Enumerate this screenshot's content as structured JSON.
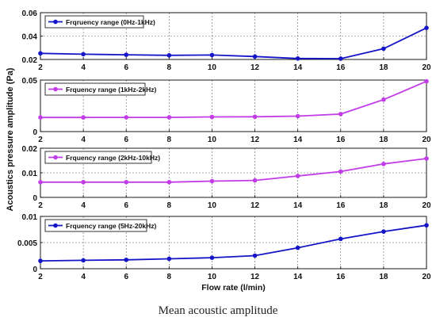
{
  "figure": {
    "caption": "Mean acoustic amplitude"
  },
  "chart_data": [
    {
      "type": "line",
      "x": [
        2,
        4,
        6,
        8,
        10,
        12,
        14,
        16,
        18,
        20
      ],
      "xlim": [
        2,
        20
      ],
      "ylim": [
        0.02,
        0.06
      ],
      "yticks": [
        "0.02",
        "0.04",
        "0.06"
      ],
      "xticks": [
        "2",
        "4",
        "6",
        "8",
        "10",
        "12",
        "14",
        "16",
        "18",
        "20"
      ],
      "grid": true,
      "legend_position": "top-left",
      "series": [
        {
          "name": "Frqruency range (0Hz-1kHz)",
          "color": "#1515c8",
          "values": [
            0.0252,
            0.0245,
            0.024,
            0.0235,
            0.0238,
            0.0225,
            0.0208,
            0.0207,
            0.0292,
            0.047
          ]
        }
      ]
    },
    {
      "type": "line",
      "x": [
        2,
        4,
        6,
        8,
        10,
        12,
        14,
        16,
        18,
        20
      ],
      "xlim": [
        2,
        20
      ],
      "ylim": [
        0,
        0.05
      ],
      "yticks": [
        "0",
        "0.05"
      ],
      "xticks": [
        "2",
        "4",
        "6",
        "8",
        "10",
        "12",
        "14",
        "16",
        "18",
        "20"
      ],
      "grid": true,
      "legend_position": "top-left",
      "series": [
        {
          "name": "Frquency range (1kHz-2kHz)",
          "color": "#c23ce8",
          "values": [
            0.0137,
            0.0137,
            0.0138,
            0.0138,
            0.0142,
            0.0144,
            0.015,
            0.017,
            0.031,
            0.0488
          ]
        }
      ]
    },
    {
      "type": "line",
      "x": [
        2,
        4,
        6,
        8,
        10,
        12,
        14,
        16,
        18,
        20
      ],
      "xlim": [
        2,
        20
      ],
      "ylim": [
        0,
        0.02
      ],
      "yticks": [
        "0",
        "0.01",
        "0.02"
      ],
      "xticks": [
        "2",
        "4",
        "6",
        "8",
        "10",
        "12",
        "14",
        "16",
        "18",
        "20"
      ],
      "grid": true,
      "legend_position": "top-left",
      "series": [
        {
          "name": "Frquency range (2kHz-10kHz)",
          "color": "#c23ce8",
          "values": [
            0.0062,
            0.0062,
            0.0062,
            0.0062,
            0.0066,
            0.0069,
            0.0087,
            0.0105,
            0.0136,
            0.0158
          ]
        }
      ]
    },
    {
      "type": "line",
      "x": [
        2,
        4,
        6,
        8,
        10,
        12,
        14,
        16,
        18,
        20
      ],
      "xlim": [
        2,
        20
      ],
      "ylim": [
        0,
        0.01
      ],
      "yticks": [
        "0",
        "0.005",
        "0.01"
      ],
      "xticks": [
        "2",
        "4",
        "6",
        "8",
        "10",
        "12",
        "14",
        "16",
        "18",
        "20"
      ],
      "xlabel": "Flow rate (l/min)",
      "grid": true,
      "legend_position": "top-left",
      "series": [
        {
          "name": "Frquency range (5Hz-20kHz)",
          "color": "#1515c8",
          "values": [
            0.0015,
            0.0016,
            0.0017,
            0.0019,
            0.0021,
            0.0025,
            0.004,
            0.0057,
            0.0071,
            0.0083
          ]
        }
      ]
    }
  ],
  "ylabel": "Acoustics pressure amplitude (Pa)"
}
